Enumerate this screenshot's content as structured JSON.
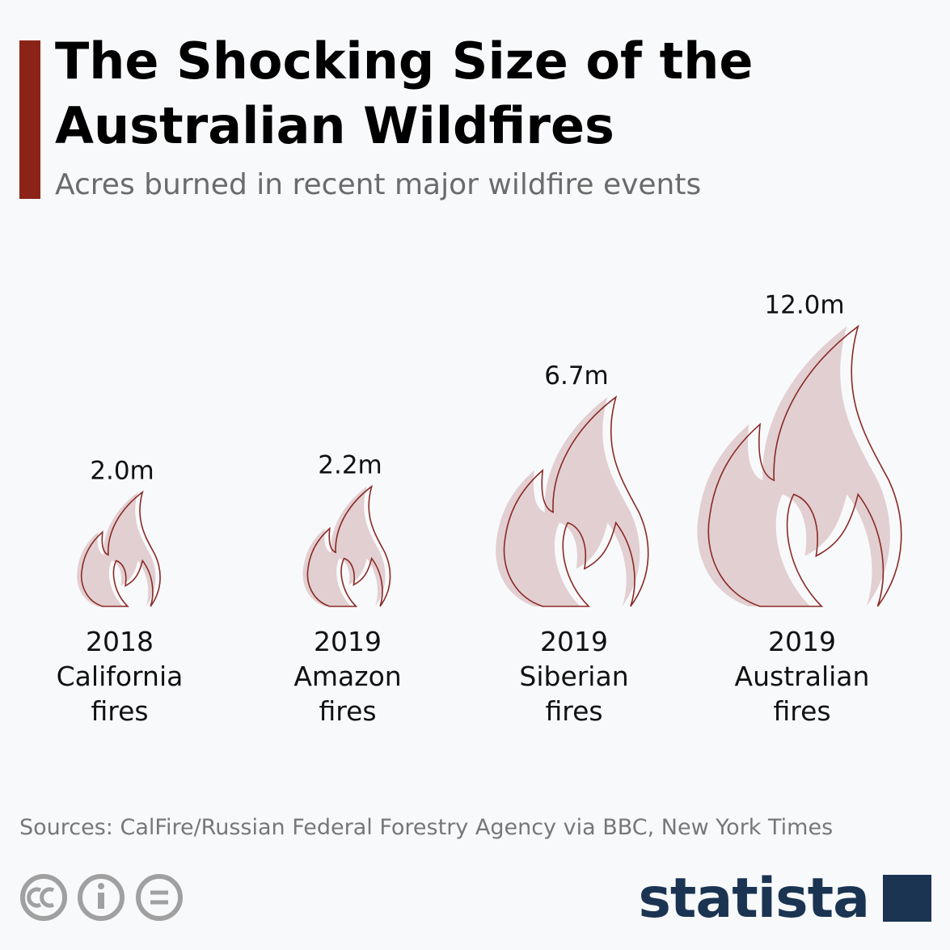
{
  "chart_data": {
    "type": "pictogram",
    "title": "The Shocking Size of the Australian Wildfires",
    "subtitle": "Acres burned in recent major wildfire events",
    "categories": [
      "2018 California fires",
      "2019 Amazon fires",
      "2019 Siberian fires",
      "2019 Australian fires"
    ],
    "values": [
      2.0,
      2.2,
      6.7,
      12.0
    ],
    "value_labels": [
      "2.0m",
      "2.2m",
      "6.7m",
      "12.0m"
    ],
    "color": "#e2cfd1",
    "outline_color": "#8a2a26",
    "source": "Sources: CalFire/Russian Federal Forestry Agency via BBC, New York Times"
  },
  "brand": "statista"
}
